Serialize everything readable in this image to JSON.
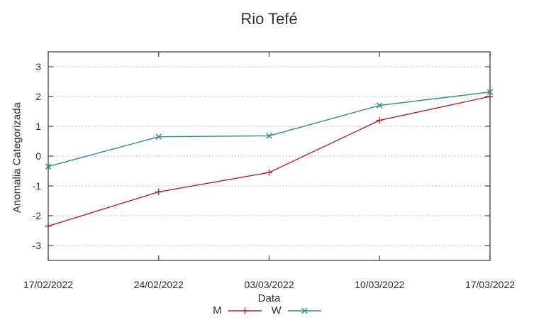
{
  "title": "Rio Tefé",
  "chart_data": {
    "type": "line",
    "title": "Rio Tefé",
    "xlabel": "Data",
    "ylabel": "Anomalia Categorizada",
    "categories": [
      "17/02/2022",
      "24/02/2022",
      "03/03/2022",
      "10/03/2022",
      "17/03/2022"
    ],
    "y_ticks": [
      3,
      2,
      1,
      0,
      -1,
      -2,
      -3
    ],
    "ylim": [
      -3.5,
      3.5
    ],
    "grid": "horizontal-dotted",
    "legend_position": "bottom-center",
    "series": [
      {
        "name": "M",
        "color": "#b02828",
        "marker": "plus",
        "values": [
          -2.35,
          -1.2,
          -0.55,
          1.2,
          2.0
        ]
      },
      {
        "name": "W",
        "color": "#2e8b8b",
        "marker": "cross",
        "values": [
          -0.35,
          0.65,
          0.68,
          1.7,
          2.15
        ]
      }
    ]
  }
}
